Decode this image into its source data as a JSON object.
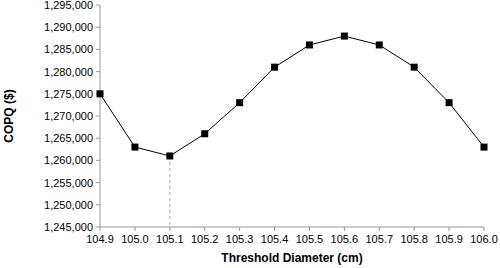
{
  "chart_data": {
    "type": "line",
    "x_label": "Threshold Diameter (cm)",
    "y_label": "COPQ ($)",
    "x": [
      104.9,
      105.0,
      105.1,
      105.2,
      105.3,
      105.4,
      105.5,
      105.6,
      105.7,
      105.8,
      105.9,
      106.0
    ],
    "values": [
      1275000,
      1263000,
      1261000,
      1266000,
      1273000,
      1281000,
      1286000,
      1288000,
      1286000,
      1281000,
      1273000,
      1263000
    ],
    "color": "#000000",
    "marker": "square",
    "line_style": "solid",
    "grid": false,
    "xlim": [
      104.9,
      106.0
    ],
    "xticks": [
      {
        "value": 104.9,
        "label": "104.9"
      },
      {
        "value": 105.0,
        "label": "105.0"
      },
      {
        "value": 105.1,
        "label": "105.1"
      },
      {
        "value": 105.2,
        "label": "105.2"
      },
      {
        "value": 105.3,
        "label": "105.3"
      },
      {
        "value": 105.4,
        "label": "105.4"
      },
      {
        "value": 105.5,
        "label": "105.5"
      },
      {
        "value": 105.6,
        "label": "105.6"
      },
      {
        "value": 105.7,
        "label": "105.7"
      },
      {
        "value": 105.8,
        "label": "105.8"
      },
      {
        "value": 105.9,
        "label": "105.9"
      },
      {
        "value": 106.0,
        "label": "106.0"
      }
    ],
    "ylim": [
      1245000,
      1295000
    ],
    "yticks": [
      {
        "value": 1245000,
        "label": "1,245,000"
      },
      {
        "value": 1250000,
        "label": "1,250,000"
      },
      {
        "value": 1255000,
        "label": "1,255,000"
      },
      {
        "value": 1260000,
        "label": "1,260,000"
      },
      {
        "value": 1265000,
        "label": "1,265,000"
      },
      {
        "value": 1270000,
        "label": "1,270,000"
      },
      {
        "value": 1275000,
        "label": "1,275,000"
      },
      {
        "value": 1280000,
        "label": "1,280,000"
      },
      {
        "value": 1285000,
        "label": "1,285,000"
      },
      {
        "value": 1290000,
        "label": "1,290,000"
      },
      {
        "value": 1295000,
        "label": "1,295,000"
      }
    ]
  }
}
